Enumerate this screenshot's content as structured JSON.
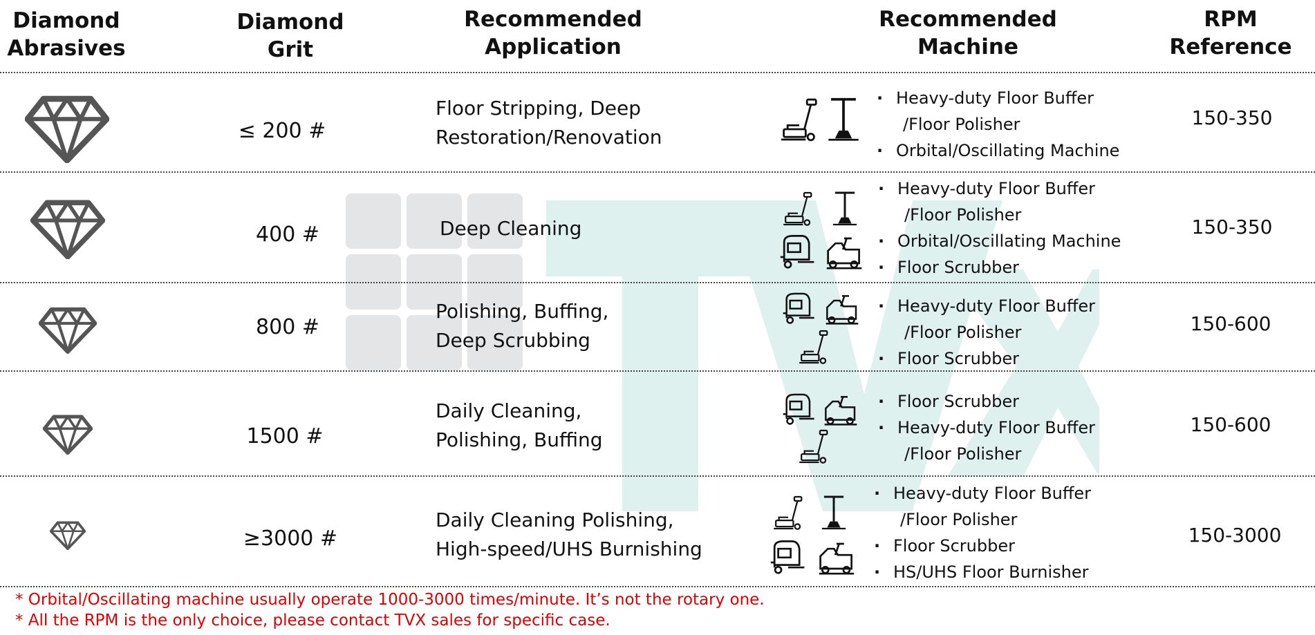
{
  "colors": {
    "note": "#e00000",
    "gem": "#555555",
    "watermark_teal": "#d8eeeb",
    "watermark_grey": "#e3e5e6"
  },
  "headers": {
    "abrasives": [
      "Diamond",
      "Abrasives"
    ],
    "grit": [
      "Diamond",
      "Grit"
    ],
    "application": [
      "Recommended",
      "Application"
    ],
    "machine": [
      "Recommended",
      "Machine"
    ],
    "rpm": [
      "RPM",
      "Reference"
    ]
  },
  "rows": [
    {
      "grit": "≤ 200 #",
      "application": [
        "Floor Stripping, Deep",
        "Restoration/Renovation"
      ],
      "machine_icons": [
        "floor-buffer-icon",
        "floor-polisher-icon"
      ],
      "machines": [
        "Heavy-duty Floor Buffer",
        "/Floor Polisher",
        "Orbital/Oscillating Machine"
      ],
      "rpm": "150-350"
    },
    {
      "grit": "400 #",
      "application": [
        "Deep Cleaning"
      ],
      "machine_icons": [
        "floor-buffer-icon",
        "floor-polisher-icon",
        "walk-behind-scrubber-icon",
        "ride-on-scrubber-icon"
      ],
      "machines": [
        "Heavy-duty Floor Buffer",
        "/Floor Polisher",
        "Orbital/Oscillating Machine",
        "Floor Scrubber"
      ],
      "rpm": "150-350"
    },
    {
      "grit": "800 #",
      "application": [
        "Polishing, Buffing,",
        "Deep Scrubbing"
      ],
      "machine_icons": [
        "walk-behind-scrubber-icon",
        "ride-on-scrubber-icon",
        "floor-buffer-icon"
      ],
      "machines": [
        "Heavy-duty Floor Buffer",
        "/Floor Polisher",
        "Floor Scrubber"
      ],
      "rpm": "150-600"
    },
    {
      "grit": "1500 #",
      "application": [
        "Daily Cleaning,",
        "Polishing, Buffing"
      ],
      "machine_icons": [
        "walk-behind-scrubber-icon",
        "ride-on-scrubber-icon",
        "floor-buffer-icon"
      ],
      "machines": [
        "Floor Scrubber",
        "Heavy-duty Floor Buffer",
        "/Floor Polisher"
      ],
      "rpm": "150-600"
    },
    {
      "grit": "≥3000 #",
      "application": [
        "Daily Cleaning Polishing,",
        "High-speed/UHS Burnishing"
      ],
      "machine_icons": [
        "floor-buffer-icon",
        "floor-polisher-icon",
        "walk-behind-scrubber-icon",
        "ride-on-scrubber-icon"
      ],
      "machines": [
        "Heavy-duty Floor Buffer",
        "/Floor Polisher",
        "Floor Scrubber",
        "HS/UHS Floor Burnisher"
      ],
      "rpm": "150-3000"
    }
  ],
  "notes": [
    "* Orbital/Oscillating machine usually operate 1000-3000 times/minute. It’s not the rotary one.",
    "* All the RPM is the only choice, please contact TVX sales for specific case."
  ]
}
